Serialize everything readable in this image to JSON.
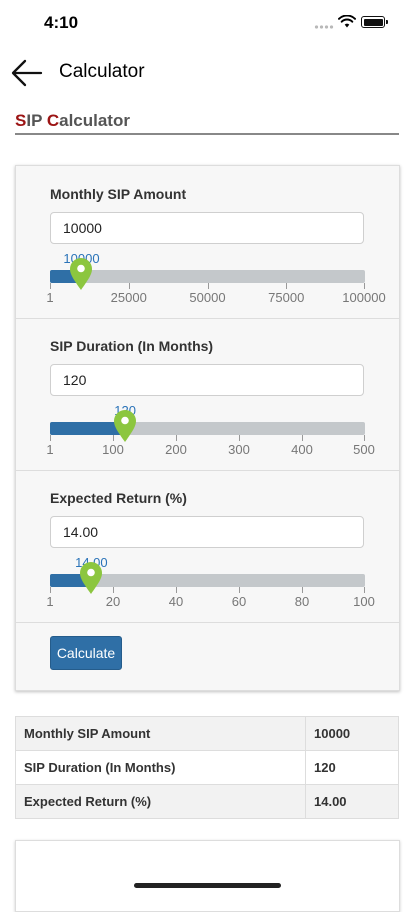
{
  "status_bar": {
    "time": "4:10"
  },
  "nav": {
    "title": "Calculator"
  },
  "section": {
    "title_first": "S",
    "title_rest1": "IP ",
    "title_second": "C",
    "title_rest2": "alculator"
  },
  "form": {
    "fields": [
      {
        "label": "Monthly SIP Amount",
        "value": "10000",
        "slider_value": 10000,
        "slider_min": 1,
        "slider_max": 100000,
        "slider_label": "10000",
        "ticks": [
          "1",
          "25000",
          "50000",
          "75000",
          "100000"
        ]
      },
      {
        "label": "SIP Duration (In Months)",
        "value": "120",
        "slider_value": 120,
        "slider_min": 1,
        "slider_max": 500,
        "slider_label": "120",
        "ticks": [
          "1",
          "100",
          "200",
          "300",
          "400",
          "500"
        ]
      },
      {
        "label": "Expected Return (%)",
        "value": "14.00",
        "slider_value": 14,
        "slider_min": 1,
        "slider_max": 100,
        "slider_label": "14.00",
        "ticks": [
          "1",
          "20",
          "40",
          "60",
          "80",
          "100"
        ]
      }
    ],
    "calculate_label": "Calculate"
  },
  "results": {
    "rows": [
      {
        "label": "Monthly SIP Amount",
        "value": "10000"
      },
      {
        "label": "SIP Duration (In Months)",
        "value": "120"
      },
      {
        "label": "Expected Return (%)",
        "value": "14.00"
      }
    ]
  },
  "colors": {
    "accent": "#9c1414",
    "primary": "#2f6fa6",
    "track": "#c4c8cb",
    "pin": "#8cc63f",
    "bubble": "#2a73b8"
  },
  "icons": {
    "back": "arrow-left-icon",
    "slider_handle": "map-pin-icon",
    "wifi": "wifi-icon",
    "battery": "battery-icon",
    "signal": "signal-icon"
  }
}
